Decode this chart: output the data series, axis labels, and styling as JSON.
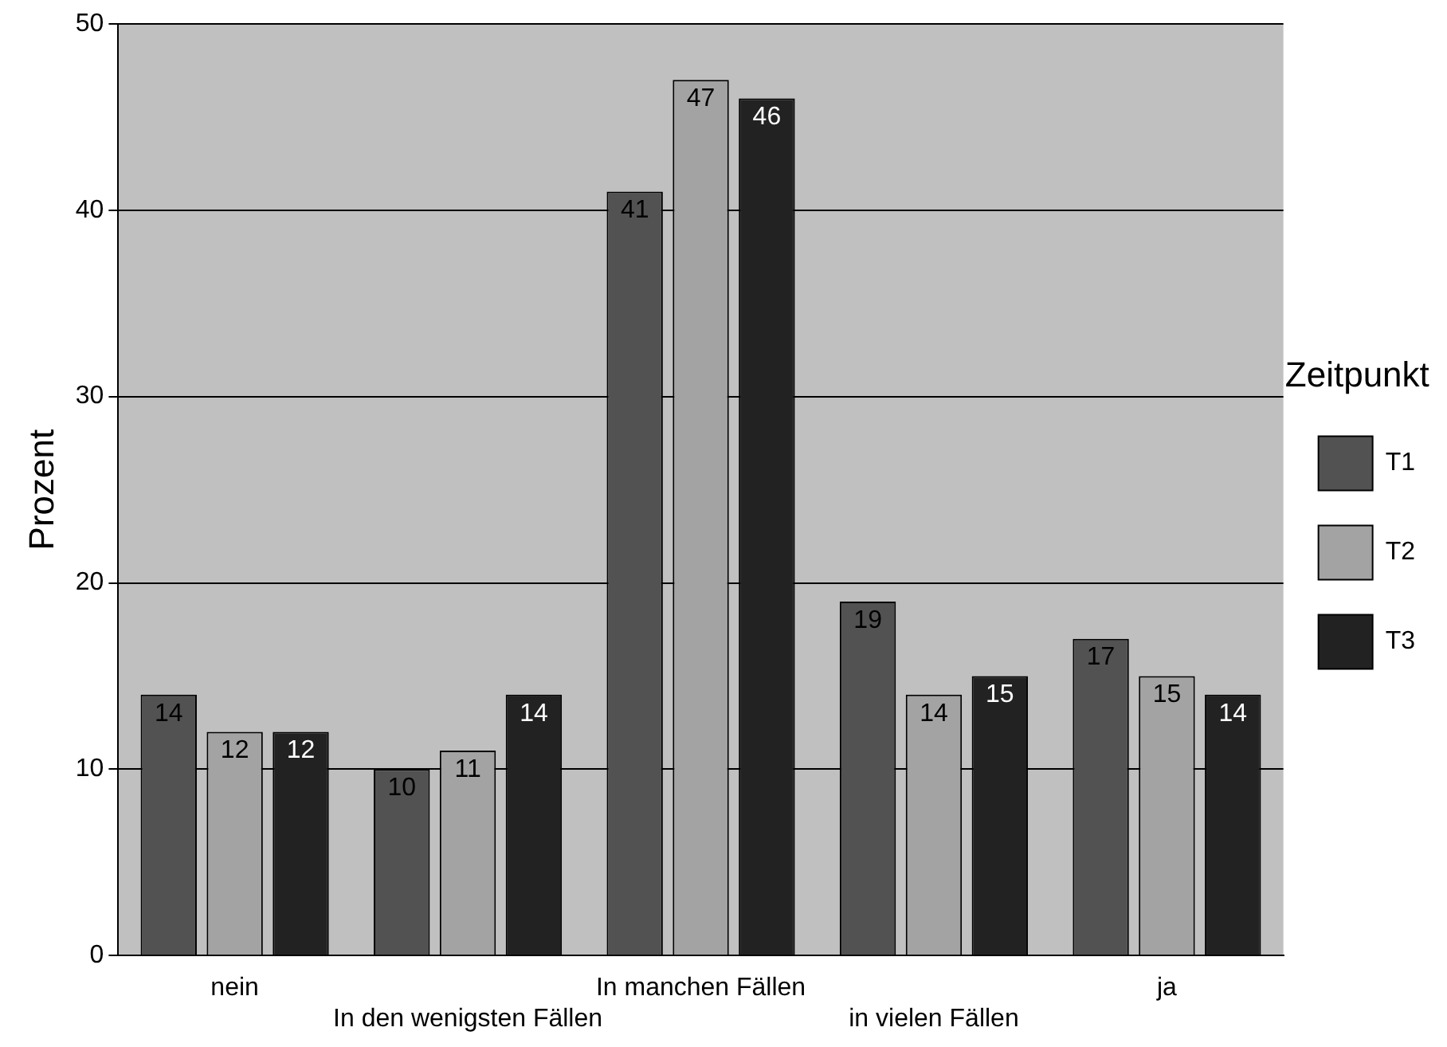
{
  "chart_data": {
    "type": "bar",
    "ylabel": "Prozent",
    "legend_title": "Zeitpunkt",
    "categories": [
      "nein",
      "In den wenigsten Fällen",
      "In manchen Fällen",
      "in vielen Fällen",
      "ja"
    ],
    "series": [
      {
        "name": "T1",
        "color": "#525252",
        "values": [
          14,
          10,
          41,
          19,
          17
        ]
      },
      {
        "name": "T2",
        "color": "#a3a3a3",
        "values": [
          12,
          11,
          47,
          14,
          15
        ]
      },
      {
        "name": "T3",
        "color": "#222222",
        "values": [
          12,
          14,
          46,
          15,
          14
        ]
      }
    ],
    "ylim": [
      0,
      50
    ],
    "yticks": [
      0,
      10,
      20,
      30,
      40,
      50
    ],
    "grid": "y",
    "legend": "right",
    "data_labels": true
  }
}
